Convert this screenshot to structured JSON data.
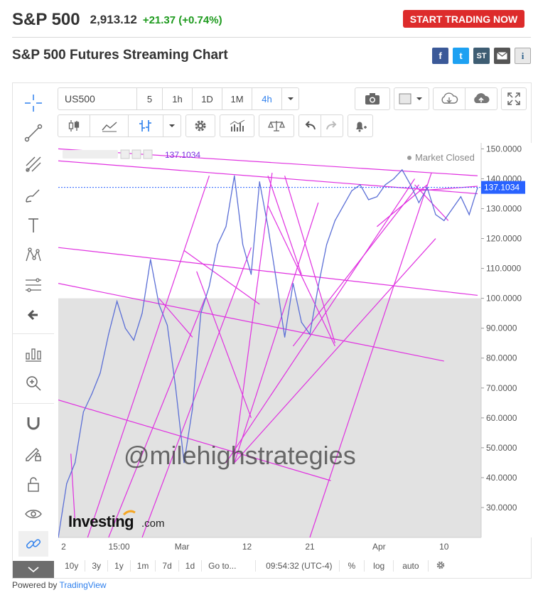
{
  "header": {
    "ticker": "S&P 500",
    "price": "2,913.12",
    "change": "+21.37 (+0.74%)",
    "trade_button": "START TRADING NOW"
  },
  "subtitle": "S&P 500 Futures Streaming Chart",
  "social": {
    "facebook": "f",
    "twitter": "t",
    "stocktwits": "ST",
    "info": "i"
  },
  "toolbar": {
    "symbol": "US500",
    "intervals": [
      "5",
      "1h",
      "1D",
      "1M",
      "4h"
    ],
    "active_interval": "4h"
  },
  "chart_overlay": {
    "last_value_label": "137.1034",
    "market_status": "Market Closed",
    "watermark": "@milehighstrategies",
    "investing_logo": "Investing",
    "investing_logo_suffix": ".com"
  },
  "bottom_bar": {
    "ranges": [
      "10y",
      "3y",
      "1y",
      "1m",
      "7d",
      "1d"
    ],
    "goto": "Go to...",
    "time": "09:54:32 (UTC-4)",
    "percent": "%",
    "log": "log",
    "auto": "auto"
  },
  "powered_by": {
    "prefix": "Powered by",
    "brand": "TradingView"
  },
  "colors": {
    "trade_button": "#dd2b2b",
    "change_positive": "#1d9a1d",
    "price_line": "#5b6fd6",
    "trendlines": "#e030e0",
    "last_value_badge": "#2962ff",
    "shaded_region": "#e2e2e2"
  },
  "chart_data": {
    "type": "line",
    "yaxis_ticks": [
      "150.0000",
      "140.0000",
      "130.0000",
      "120.0000",
      "110.0000",
      "100.0000",
      "90.0000",
      "80.0000",
      "70.0000",
      "60.0000",
      "50.0000",
      "40.0000",
      "30.0000"
    ],
    "xaxis_ticks": [
      "2",
      "15:00",
      "Mar",
      "12",
      "21",
      "Apr",
      "10"
    ],
    "ylim": [
      20,
      152
    ],
    "last_value": 137.1034,
    "series": [
      {
        "x": [
          0,
          2,
          4,
          6,
          8,
          10,
          12,
          14,
          16,
          18,
          20,
          22,
          24,
          26,
          28,
          30,
          32,
          34,
          36,
          38,
          40,
          42,
          44,
          46,
          48,
          50,
          52,
          54,
          56,
          58,
          60,
          62,
          64,
          66,
          68,
          70,
          72,
          74,
          76,
          78,
          80,
          82,
          84,
          86,
          88,
          90,
          92,
          94,
          96,
          98,
          100
        ],
        "values": [
          20,
          38,
          45,
          62,
          68,
          75,
          88,
          99,
          90,
          86,
          95,
          113,
          98,
          91,
          70,
          45,
          63,
          95,
          104,
          118,
          124,
          141,
          118,
          108,
          139,
          124,
          106,
          87,
          105,
          92,
          88,
          104,
          118,
          126,
          131,
          136,
          138,
          133,
          134,
          138,
          140,
          143,
          138,
          132,
          137,
          128,
          126,
          130,
          134,
          128,
          137
        ]
      }
    ],
    "shaded_below": 100,
    "grid": false
  }
}
